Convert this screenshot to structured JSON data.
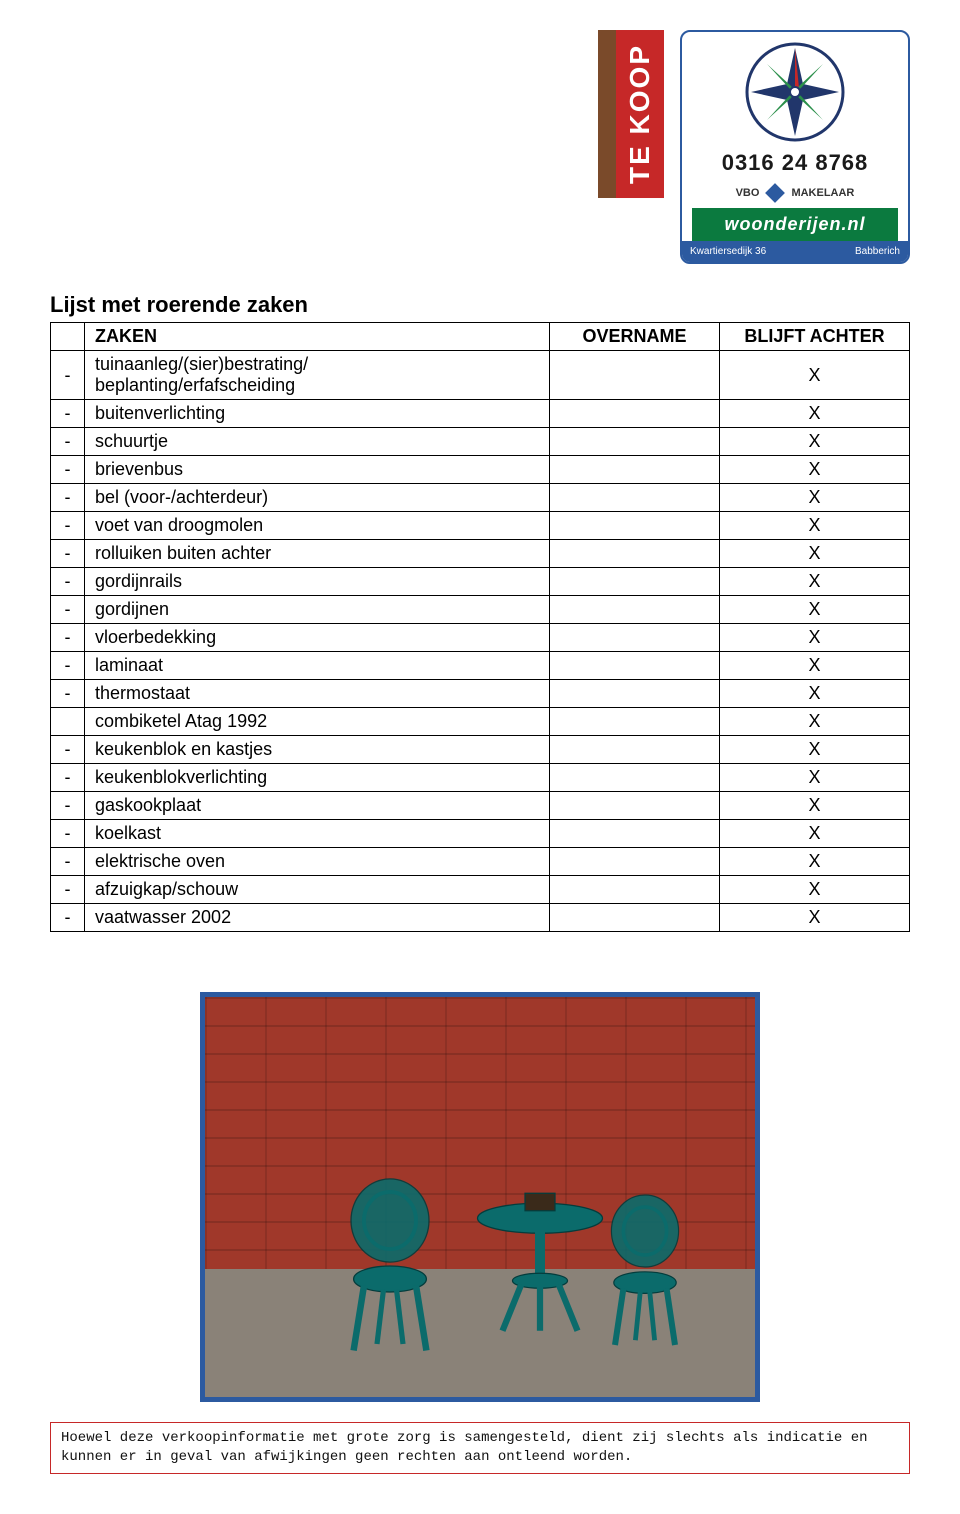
{
  "header": {
    "te_koop_label": "TE KOOP",
    "phone": "0316 24 8768",
    "vbo_text_left": "VBO",
    "vbo_text_right": "MAKELAAR",
    "website": "woonderijen.nl",
    "address_left": "Kwartiersedijk 36",
    "address_right": "Babberich",
    "colors": {
      "red": "#c62828",
      "brown": "#7a4a2a",
      "card_border": "#2c5aa0",
      "green": "#0b7a3f",
      "navy": "#2c5aa0",
      "compass_dark": "#21366b",
      "compass_green": "#2a8f4a",
      "compass_red": "#c62828"
    }
  },
  "table": {
    "title": "Lijst met roerende zaken",
    "headers": {
      "zaken": "ZAKEN",
      "overname": "OVERNAME",
      "blijft": "BLIJFT ACHTER"
    },
    "mark": "X",
    "dash": "-",
    "rows": [
      {
        "dash": "-",
        "item": "tuinaanleg/(sier)bestrating/\nbeplanting/erfafscheiding",
        "overname": "",
        "blijft": "X"
      },
      {
        "dash": "-",
        "item": "buitenverlichting",
        "overname": "",
        "blijft": "X"
      },
      {
        "dash": "-",
        "item": "schuurtje",
        "overname": "",
        "blijft": "X"
      },
      {
        "dash": "-",
        "item": "brievenbus",
        "overname": "",
        "blijft": "X"
      },
      {
        "dash": "-",
        "item": "bel (voor-/achterdeur)",
        "overname": "",
        "blijft": "X"
      },
      {
        "dash": "-",
        "item": "voet van droogmolen",
        "overname": "",
        "blijft": "X"
      },
      {
        "dash": "-",
        "item": "rolluiken buiten achter",
        "overname": "",
        "blijft": "X"
      },
      {
        "dash": "-",
        "item": "gordijnrails",
        "overname": "",
        "blijft": "X"
      },
      {
        "dash": "-",
        "item": "gordijnen",
        "overname": "",
        "blijft": "X"
      },
      {
        "dash": "-",
        "item": "vloerbedekking",
        "overname": "",
        "blijft": "X"
      },
      {
        "dash": "-",
        "item": "laminaat",
        "overname": "",
        "blijft": "X"
      },
      {
        "dash": "-",
        "item": "thermostaat",
        "overname": "",
        "blijft": "X"
      },
      {
        "dash": "",
        "item": "combiketel Atag 1992",
        "overname": "",
        "blijft": "X"
      },
      {
        "dash": "-",
        "item": "keukenblok en kastjes",
        "overname": "",
        "blijft": "X"
      },
      {
        "dash": "-",
        "item": "keukenblokverlichting",
        "overname": "",
        "blijft": "X"
      },
      {
        "dash": "-",
        "item": "gaskookplaat",
        "overname": "",
        "blijft": "X"
      },
      {
        "dash": "-",
        "item": "koelkast",
        "overname": "",
        "blijft": "X"
      },
      {
        "dash": "-",
        "item": "elektrische oven",
        "overname": "",
        "blijft": "X"
      },
      {
        "dash": "-",
        "item": "afzuigkap/schouw",
        "overname": "",
        "blijft": "X"
      },
      {
        "dash": "-",
        "item": "vaatwasser 2002",
        "overname": "",
        "blijft": "X"
      }
    ],
    "border_color": "#000000",
    "font_size": 18
  },
  "photo": {
    "border_color": "#2c5aa0",
    "brick_color": "#a0382a",
    "ground_color": "#8a8278",
    "furniture_color": "#0b6b6b"
  },
  "disclaimer": {
    "text": "Hoewel deze verkoopinformatie met grote zorg is samengesteld, dient zij slechts als indicatie en kunnen er in geval van afwijkingen geen rechten aan ontleend worden.",
    "border_color": "#c62828",
    "font_family": "Courier New"
  }
}
